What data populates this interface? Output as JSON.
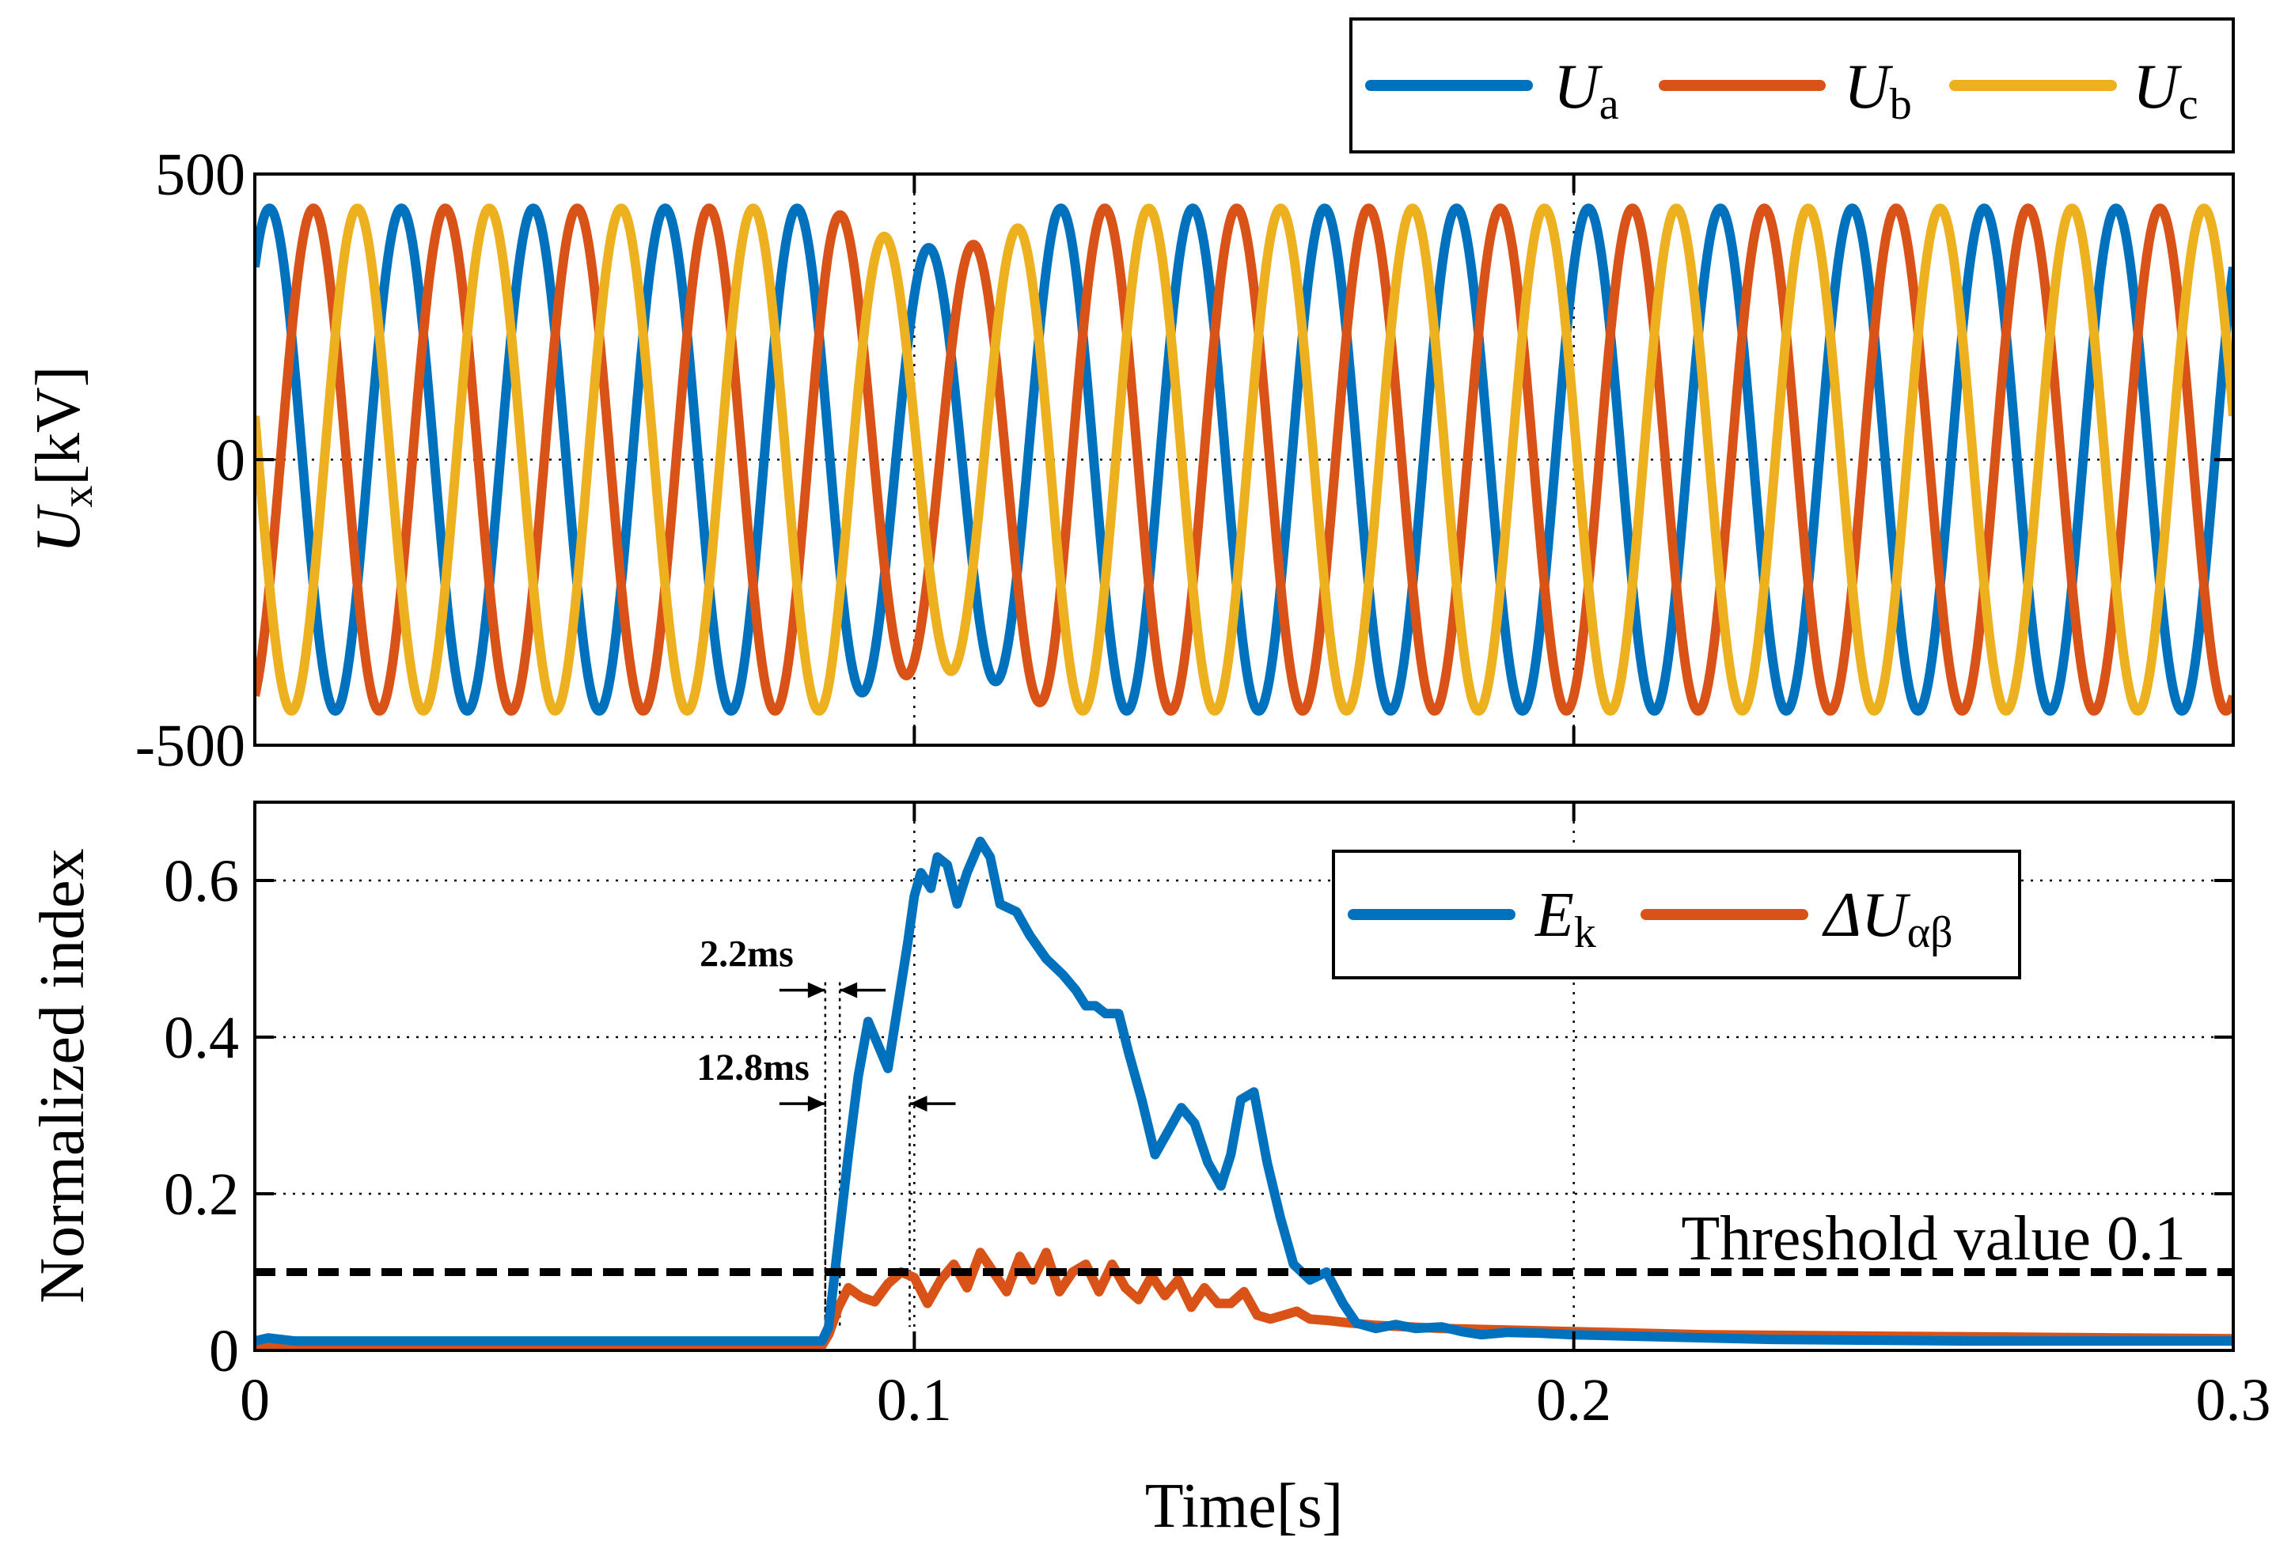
{
  "colors": {
    "blue": "#0072BD",
    "orange": "#D95319",
    "yellow": "#EDB120",
    "black": "#000000",
    "grid": "#000000"
  },
  "chart_data": [
    {
      "type": "line",
      "id": "voltage",
      "ylabel_main": "U",
      "ylabel_sub": "x",
      "ylabel_unit": "[kV]",
      "xlim": [
        0,
        0.3
      ],
      "ylim": [
        -500,
        500
      ],
      "yticks": [
        -500,
        0,
        500
      ],
      "ytick_labels": [
        "-500",
        "0",
        "500"
      ],
      "grid_x": [
        0.1,
        0.2
      ],
      "grid_y": [
        0
      ],
      "amplitude_kv": 440,
      "frequency_hz": 50,
      "fault_interval_s": [
        0.087,
        0.135
      ],
      "fault_amplitude_min_kv": 370,
      "series": [
        {
          "name": "U",
          "sub": "a",
          "phase_deg": 50,
          "color": "blue"
        },
        {
          "name": "U",
          "sub": "b",
          "phase_deg": -70,
          "color": "orange"
        },
        {
          "name": "U",
          "sub": "c",
          "phase_deg": 170,
          "color": "yellow"
        }
      ],
      "legend": [
        "Ua",
        "Ub",
        "Uc"
      ],
      "legend_location": "top-right, outside axes"
    },
    {
      "type": "line",
      "id": "index",
      "xlabel": "Time[s]",
      "ylabel": "Normalized index",
      "xlim": [
        0,
        0.3
      ],
      "ylim": [
        0,
        0.7
      ],
      "xticks": [
        0,
        0.1,
        0.2,
        0.3
      ],
      "xtick_labels": [
        "0",
        "0.1",
        "0.2",
        "0.3"
      ],
      "yticks": [
        0,
        0.2,
        0.4,
        0.6
      ],
      "ytick_labels": [
        "0",
        "0.2",
        "0.4",
        "0.6"
      ],
      "grid": true,
      "series": [
        {
          "name": "E",
          "sub": "k",
          "color": "blue",
          "x": [
            0,
            0.002,
            0.006,
            0.086,
            0.087,
            0.0885,
            0.09,
            0.0915,
            0.093,
            0.0945,
            0.096,
            0.0975,
            0.099,
            0.1,
            0.101,
            0.1025,
            0.1035,
            0.105,
            0.1065,
            0.108,
            0.11,
            0.1115,
            0.113,
            0.1155,
            0.1175,
            0.12,
            0.1225,
            0.1245,
            0.126,
            0.1275,
            0.129,
            0.131,
            0.1325,
            0.1345,
            0.1365,
            0.1385,
            0.1405,
            0.1425,
            0.1445,
            0.1465,
            0.148,
            0.1495,
            0.1515,
            0.1535,
            0.1555,
            0.1575,
            0.16,
            0.1625,
            0.165,
            0.167,
            0.17,
            0.173,
            0.176,
            0.18,
            0.183,
            0.186,
            0.19,
            0.195,
            0.2,
            0.21,
            0.23,
            0.26,
            0.3
          ],
          "y": [
            0.012,
            0.016,
            0.012,
            0.012,
            0.03,
            0.14,
            0.25,
            0.35,
            0.42,
            0.39,
            0.36,
            0.44,
            0.52,
            0.58,
            0.61,
            0.59,
            0.63,
            0.62,
            0.57,
            0.61,
            0.65,
            0.63,
            0.57,
            0.56,
            0.53,
            0.5,
            0.48,
            0.46,
            0.44,
            0.44,
            0.43,
            0.43,
            0.38,
            0.32,
            0.25,
            0.28,
            0.31,
            0.29,
            0.24,
            0.21,
            0.25,
            0.32,
            0.33,
            0.24,
            0.17,
            0.11,
            0.09,
            0.1,
            0.06,
            0.035,
            0.028,
            0.033,
            0.028,
            0.03,
            0.024,
            0.02,
            0.023,
            0.022,
            0.02,
            0.018,
            0.014,
            0.012,
            0.012
          ]
        },
        {
          "name": "ΔU",
          "sub": "αβ",
          "color": "orange",
          "x": [
            0,
            0.003,
            0.086,
            0.087,
            0.0885,
            0.09,
            0.092,
            0.094,
            0.096,
            0.098,
            0.1,
            0.102,
            0.104,
            0.106,
            0.108,
            0.11,
            0.112,
            0.114,
            0.116,
            0.118,
            0.12,
            0.122,
            0.124,
            0.126,
            0.128,
            0.13,
            0.132,
            0.134,
            0.136,
            0.138,
            0.14,
            0.142,
            0.144,
            0.146,
            0.148,
            0.15,
            0.152,
            0.154,
            0.156,
            0.158,
            0.16,
            0.163,
            0.166,
            0.17,
            0.175,
            0.18,
            0.19,
            0.2,
            0.22,
            0.25,
            0.3
          ],
          "y": [
            0.005,
            0.006,
            0.006,
            0.02,
            0.055,
            0.08,
            0.068,
            0.062,
            0.085,
            0.1,
            0.093,
            0.06,
            0.09,
            0.11,
            0.08,
            0.125,
            0.1,
            0.075,
            0.12,
            0.09,
            0.125,
            0.075,
            0.1,
            0.11,
            0.075,
            0.11,
            0.08,
            0.065,
            0.095,
            0.07,
            0.09,
            0.055,
            0.08,
            0.06,
            0.06,
            0.075,
            0.045,
            0.04,
            0.045,
            0.05,
            0.04,
            0.038,
            0.035,
            0.032,
            0.03,
            0.028,
            0.026,
            0.024,
            0.02,
            0.018,
            0.015
          ]
        }
      ],
      "threshold": {
        "value": 0.1,
        "label": "Threshold value   0.1"
      },
      "annotations": [
        {
          "label": "2.2ms",
          "interval": [
            0.0865,
            0.0887
          ]
        },
        {
          "label": "12.8ms",
          "interval": [
            0.0865,
            0.0993
          ]
        }
      ],
      "legend": [
        "Ek",
        "ΔUαβ"
      ],
      "legend_location": "top-right, inside axes"
    }
  ]
}
